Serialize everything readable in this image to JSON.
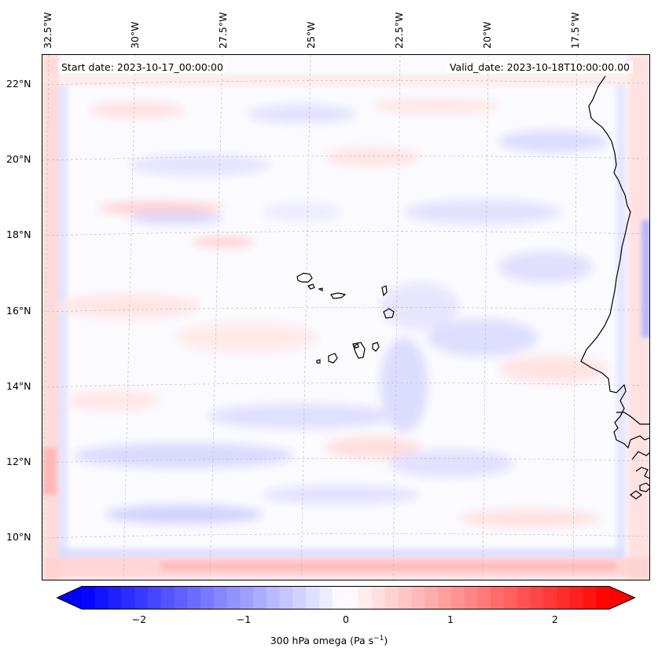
{
  "map": {
    "start_date": "Start date: 2023-10-17_00:00:00",
    "valid_date": "Valid_date: 2023-10-18T10:00:00.00",
    "lon_labels": [
      "32.5°W",
      "30°W",
      "27.5°W",
      "25°W",
      "22.5°W",
      "20°W",
      "17.5°W"
    ],
    "lat_labels": [
      "22°N",
      "20°N",
      "18°N",
      "16°N",
      "14°N",
      "12°N",
      "10°N"
    ],
    "features": [
      "Cape Verde islands",
      "West African coastline"
    ]
  },
  "colorbar": {
    "label_prefix": "300 hPa omega (Pa s",
    "label_exp": "−1",
    "label_suffix": ")",
    "ticks": [
      "−2",
      "−1",
      "0",
      "1",
      "2"
    ],
    "min": -2.6,
    "max": 2.6,
    "low_color": "#0000ff",
    "mid_color": "#ffffff",
    "high_color": "#ff0000"
  }
}
